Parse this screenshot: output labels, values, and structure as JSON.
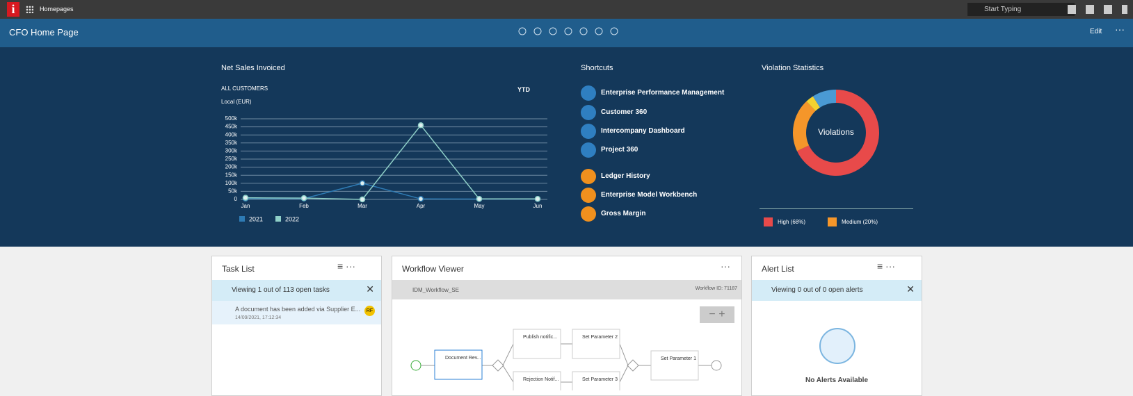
{
  "topbar": {
    "logo": "i",
    "app": "Homepages",
    "search": "Start Typing"
  },
  "header": {
    "title": "CFO Home Page",
    "edit": "Edit"
  },
  "chart_data": [
    {
      "type": "line",
      "title": "Net Sales Invoiced",
      "subtitle": "ALL CUSTOMERS",
      "y_label": "Local (EUR)",
      "period": "YTD",
      "categories": [
        "Jan",
        "Feb",
        "Mar",
        "Apr",
        "May",
        "Jun"
      ],
      "series": [
        {
          "name": "2021",
          "color": "#2e7bb4",
          "values": [
            5000,
            5000,
            100000,
            3000,
            2000,
            2000
          ]
        },
        {
          "name": "2022",
          "color": "#8fd0c8",
          "values": [
            10000,
            8000,
            0,
            460000,
            3000,
            3000
          ]
        }
      ],
      "ylim": [
        0,
        500000
      ],
      "yticks": [
        0,
        {
          "value": 50000,
          "label": "50k"
        },
        {
          "value": 100000,
          "label": "100k"
        },
        {
          "value": 150000,
          "label": "150k"
        },
        {
          "value": 200000,
          "label": "200k"
        },
        {
          "value": 250000,
          "label": "250k"
        },
        {
          "value": 300000,
          "label": "300k"
        },
        {
          "value": 350000,
          "label": "350k"
        },
        {
          "value": 400000,
          "label": "400k"
        },
        {
          "value": 450000,
          "label": "450k"
        },
        {
          "value": 500000,
          "label": "500k"
        }
      ],
      "grid": true
    },
    {
      "type": "pie",
      "title": "Violation Statistics",
      "center_label": "Violations",
      "categories": [
        "High (68%)",
        "Medium (20%)",
        null,
        null
      ],
      "values": [
        68,
        20,
        3,
        9
      ],
      "colors": [
        "#e84a4a",
        "#f5962a",
        "#f2d230",
        "#4a9ad4"
      ]
    }
  ],
  "shortcuts": {
    "title": "Shortcuts",
    "items": [
      "Enterprise Performance Management",
      "Customer 360",
      "Intercompany Dashboard",
      "Project 360",
      "Ledger History",
      "Enterprise Model Workbench",
      "Gross Margin"
    ]
  },
  "task_list": {
    "title": "Task List",
    "info": "Viewing 1 out of 113 open tasks",
    "task": "A document has been added via Supplier E...",
    "date": "14/09/2021, 17:12:34",
    "avatar": "RF"
  },
  "workflow": {
    "title": "Workflow Viewer",
    "name": "IDM_Workflow_SE",
    "id": "Workflow ID: 71187",
    "nodes": [
      "Document Rev...",
      "Publish notific...",
      "Set Parameter 2",
      "Set Parameter 1",
      "Rejection Notif...",
      "Set Parameter 3"
    ]
  },
  "alert_list": {
    "title": "Alert List",
    "info": "Viewing 0 out of 0 open alerts",
    "empty": "No Alerts Available"
  }
}
